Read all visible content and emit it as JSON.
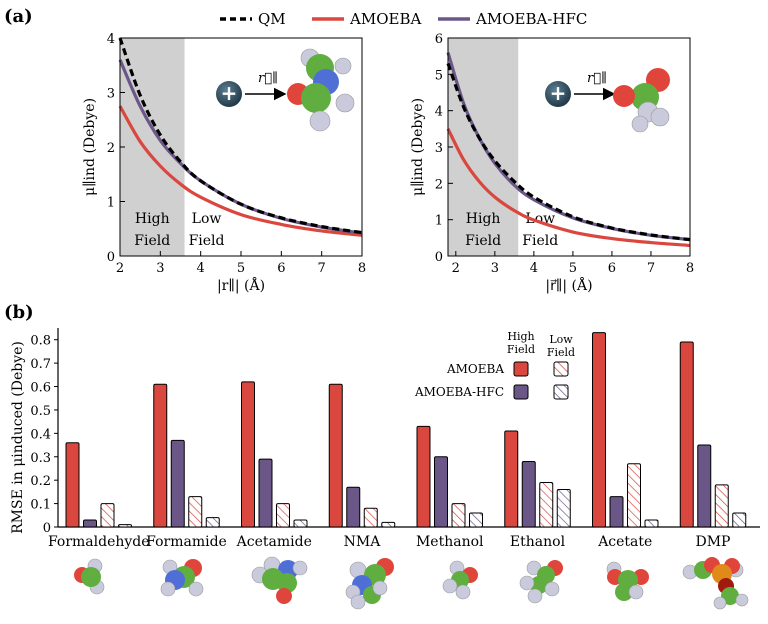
{
  "panel_labels": {
    "a": "(a)",
    "b": "(b)"
  },
  "legend_a": {
    "qm": "QM",
    "amoeba": "AMOEBA",
    "hfc": "AMOEBA-HFC"
  },
  "colors": {
    "qm": "#000000",
    "amoeba": "#d9473f",
    "hfc": "#6a5787",
    "shade": "#d0d0d0",
    "ion": "#2b4a5a",
    "carbon": "#5fae3f",
    "oxygen": "#e0453c",
    "nitrogen": "#4f6fd6",
    "hydrogen": "#c9cbdc",
    "phosphorus": "#e08a1a"
  },
  "icons": {
    "ion": "cation-plus-icon",
    "arrow": "field-vector-arrow-icon",
    "molecule": "molecule-ball-model-icon"
  },
  "region_labels": {
    "high_1": "High",
    "high_2": "Field",
    "low_1": "Low",
    "low_2": "Field"
  },
  "vector_label": "r⃗∥",
  "chart_data": [
    {
      "type": "line",
      "panel": "a-left",
      "xlabel": "|r∥| (Å)",
      "ylabel": "μ∥ind (Debye)",
      "xlim": [
        2,
        8
      ],
      "ylim": [
        0,
        4
      ],
      "xticks": [
        "2",
        "3",
        "4",
        "5",
        "6",
        "7",
        "8"
      ],
      "yticks": [
        "0",
        "1",
        "2",
        "3",
        "4"
      ],
      "shaded_region": [
        2,
        3.6
      ],
      "x": [
        2.0,
        2.5,
        3.0,
        3.5,
        4.0,
        5.0,
        6.0,
        7.0,
        8.0
      ],
      "series": [
        {
          "name": "QM",
          "style": "dashed",
          "values": [
            4.0,
            2.95,
            2.22,
            1.73,
            1.38,
            0.95,
            0.7,
            0.54,
            0.43
          ]
        },
        {
          "name": "AMOEBA",
          "values": [
            2.75,
            2.1,
            1.65,
            1.32,
            1.08,
            0.76,
            0.58,
            0.46,
            0.38
          ]
        },
        {
          "name": "AMOEBA-HFC",
          "values": [
            3.6,
            2.75,
            2.12,
            1.7,
            1.38,
            0.95,
            0.69,
            0.53,
            0.42
          ]
        }
      ]
    },
    {
      "type": "line",
      "panel": "a-right",
      "xlabel": "|r⃗∥| (Å)",
      "ylabel": "μ∥ind (Debye)",
      "xlim": [
        1.8,
        8
      ],
      "ylim": [
        0,
        6
      ],
      "xticks": [
        "2",
        "3",
        "4",
        "5",
        "6",
        "7",
        "8"
      ],
      "yticks": [
        "0",
        "1",
        "2",
        "3",
        "4",
        "5",
        "6"
      ],
      "shaded_region": [
        1.8,
        3.6
      ],
      "x": [
        1.8,
        2.2,
        2.6,
        3.0,
        3.5,
        4.0,
        5.0,
        6.0,
        7.0,
        8.0
      ],
      "series": [
        {
          "name": "QM",
          "style": "dashed",
          "values": [
            5.3,
            4.1,
            3.25,
            2.62,
            2.05,
            1.62,
            1.08,
            0.77,
            0.58,
            0.45
          ]
        },
        {
          "name": "AMOEBA",
          "values": [
            3.5,
            2.65,
            2.05,
            1.62,
            1.25,
            0.99,
            0.66,
            0.48,
            0.37,
            0.29
          ]
        },
        {
          "name": "AMOEBA-HFC",
          "values": [
            5.6,
            4.2,
            3.25,
            2.55,
            1.95,
            1.55,
            1.05,
            0.76,
            0.57,
            0.45
          ]
        }
      ]
    },
    {
      "type": "bar",
      "panel": "b",
      "ylabel": "RMSE in μinduced (Debye)",
      "ylim": [
        0,
        0.85
      ],
      "yticks": [
        "0",
        "0.1",
        "0.2",
        "0.3",
        "0.4",
        "0.5",
        "0.6",
        "0.7",
        "0.8"
      ],
      "categories": [
        "Formaldehyde",
        "Formamide",
        "Acetamide",
        "NMA",
        "Methanol",
        "Ethanol",
        "Acetate",
        "DMP"
      ],
      "series": [
        {
          "name": "AMOEBA High Field",
          "values": [
            0.36,
            0.61,
            0.62,
            0.61,
            0.43,
            0.41,
            0.83,
            0.79
          ]
        },
        {
          "name": "AMOEBA-HFC High Field",
          "values": [
            0.03,
            0.37,
            0.29,
            0.17,
            0.3,
            0.28,
            0.13,
            0.35
          ]
        },
        {
          "name": "AMOEBA Low Field",
          "values": [
            0.1,
            0.13,
            0.1,
            0.08,
            0.1,
            0.19,
            0.27,
            0.18
          ]
        },
        {
          "name": "AMOEBA-HFC Low Field",
          "values": [
            0.01,
            0.04,
            0.03,
            0.02,
            0.06,
            0.16,
            0.03,
            0.06
          ]
        }
      ],
      "legend": {
        "rows": [
          "AMOEBA",
          "AMOEBA-HFC"
        ],
        "cols": [
          "High Field",
          "Low Field"
        ],
        "col_high_1": "High",
        "col_high_2": "Field",
        "col_low_1": "Low",
        "col_low_2": "Field"
      }
    }
  ]
}
